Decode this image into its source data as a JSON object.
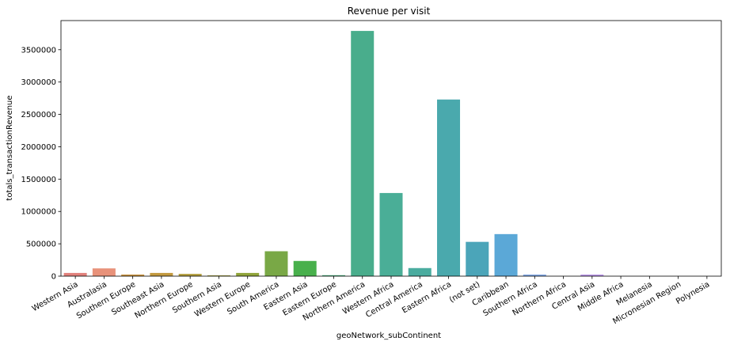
{
  "chart_data": {
    "type": "bar",
    "title": "Revenue per visit",
    "xlabel": "geoNetwork_subContinent",
    "ylabel": "totals_transactionRevenue",
    "ylim": [
      0,
      3950000
    ],
    "yticks": [
      0,
      500000,
      1000000,
      1500000,
      2000000,
      2500000,
      3000000,
      3500000
    ],
    "ytick_labels": [
      "0",
      "500000",
      "1000000",
      "1500000",
      "2000000",
      "2500000",
      "3000000",
      "3500000"
    ],
    "grid": false,
    "legend": "none",
    "categories": [
      "Western Asia",
      "Australasia",
      "Southern Europe",
      "Southeast Asia",
      "Northern Europe",
      "Southern Asia",
      "Western Europe",
      "South America",
      "Eastern Asia",
      "Eastern Europe",
      "Northern America",
      "Western Africa",
      "Central America",
      "Eastern Africa",
      "(not set)",
      "Caribbean",
      "Southern Africa",
      "Northern Africa",
      "Central Asia",
      "Middle Africa",
      "Melanesia",
      "Micronesian Region",
      "Polynesia"
    ],
    "values": [
      50000,
      120000,
      25000,
      50000,
      35000,
      12000,
      50000,
      385000,
      235000,
      15000,
      3790000,
      1285000,
      125000,
      2730000,
      530000,
      650000,
      25000,
      0,
      25000,
      0,
      0,
      0,
      0
    ],
    "colors": [
      "#e1817c",
      "#e8927a",
      "#c8923f",
      "#c39a3f",
      "#b29c3b",
      "#a3a13a",
      "#91a53b",
      "#79a846",
      "#48b04c",
      "#4bb07e",
      "#49ad8c",
      "#4aae97",
      "#4aac9f",
      "#4aa9ad",
      "#4ba5b9",
      "#5ba8d7",
      "#83a9e6",
      "#a6a6ec",
      "#bb98e9",
      "#cf8ee5",
      "#e38dd6",
      "#e98dc6",
      "#e88fb6"
    ]
  }
}
